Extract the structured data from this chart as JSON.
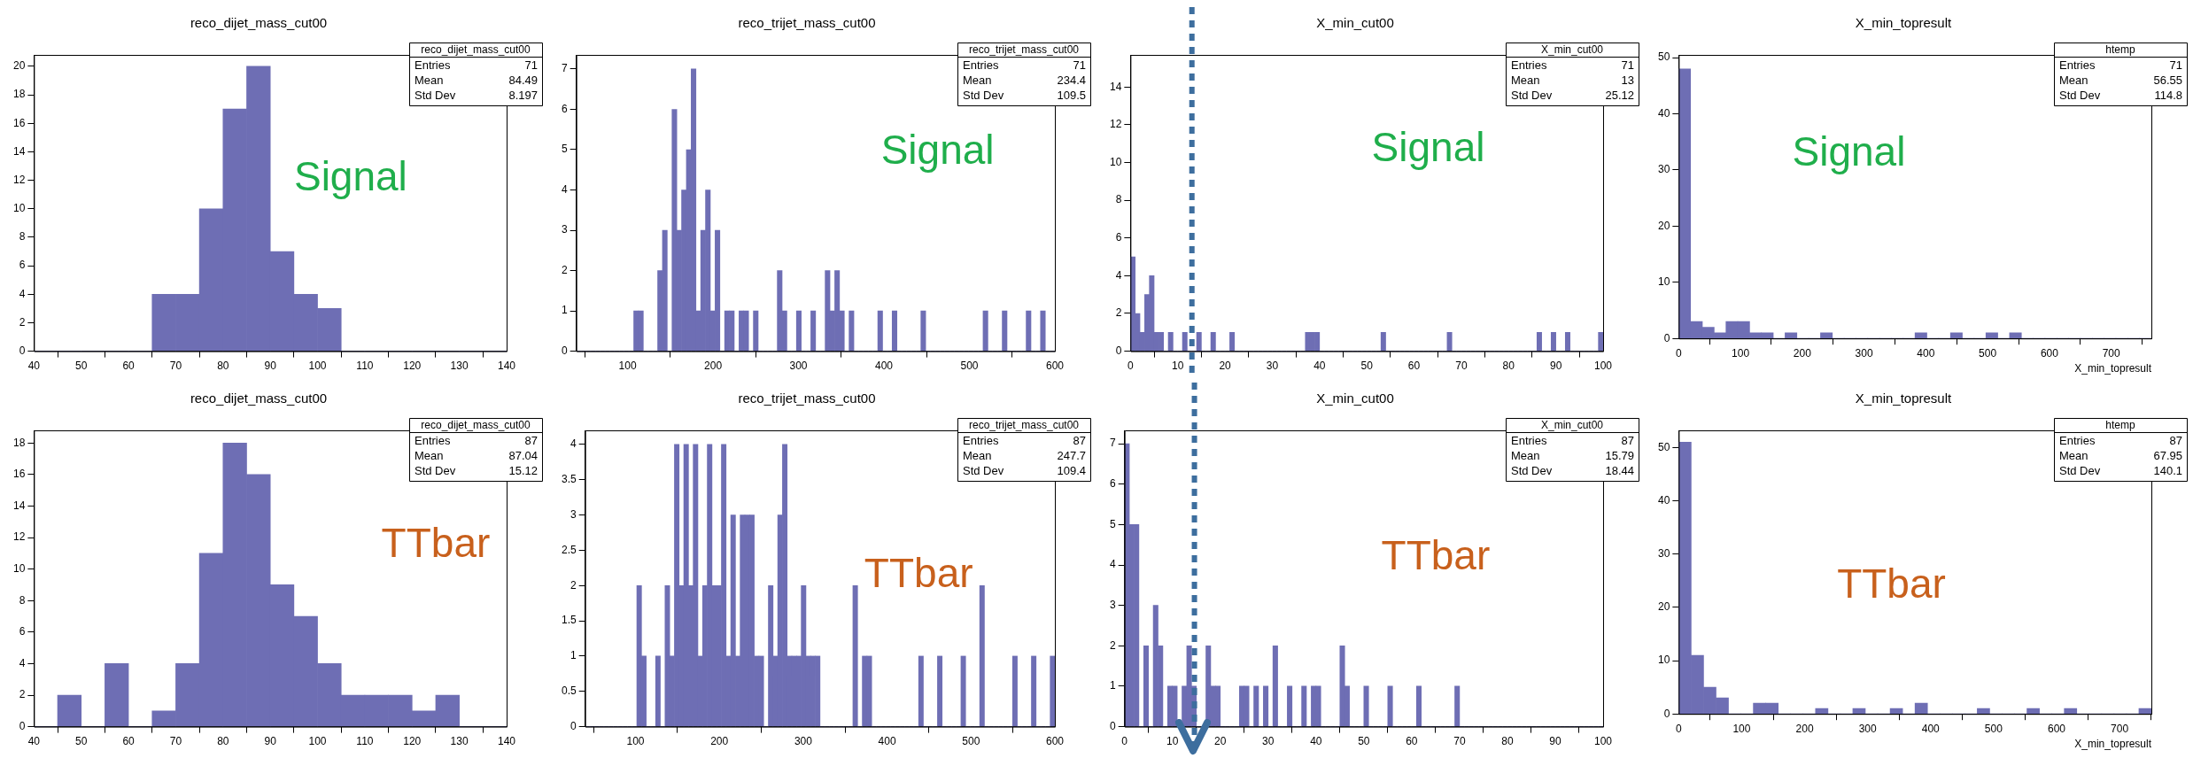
{
  "chart_data": [
    {
      "type": "histogram",
      "title": "reco_dijet_mass_cut00",
      "color": "#6e6eb4",
      "bins": [
        40,
        45,
        50,
        55,
        60,
        65,
        70,
        75,
        80,
        85,
        90,
        95,
        100,
        105,
        110,
        115,
        120,
        125,
        130,
        135,
        140
      ],
      "values": [
        0,
        0,
        0,
        0,
        0,
        4,
        4,
        10,
        17,
        20,
        7,
        4,
        3,
        0,
        0,
        0,
        0,
        0,
        0,
        0
      ],
      "xlim": [
        40,
        140
      ],
      "xticks": [
        40,
        50,
        60,
        70,
        80,
        90,
        100,
        110,
        120,
        130,
        140
      ],
      "ylim": [
        0,
        20.8
      ],
      "yticks": [
        0,
        2,
        4,
        6,
        8,
        10,
        12,
        14,
        16,
        18,
        20
      ],
      "annotations": [
        "reco_dijet_mass_cut00",
        "Entries",
        "71",
        "Mean",
        "84.49",
        "Std Dev",
        "8.197",
        "Signal"
      ]
    },
    {
      "type": "histogram",
      "title": "reco_trijet_mass_cut00",
      "color": "#6e6eb4",
      "bins": [
        40,
        45.6,
        51.2,
        56.8,
        62.4,
        68,
        73.6,
        79.2,
        84.8,
        90.4,
        96,
        101.6,
        107.2,
        112.8,
        118.4,
        124,
        129.6,
        135.2,
        140.8,
        146.4,
        152,
        157.6,
        163.2,
        168.8,
        174.4,
        180,
        185.6,
        191.2,
        196.8,
        202.4,
        208,
        213.6,
        219.2,
        224.8,
        230.4,
        236,
        241.6,
        247.2,
        252.8,
        258.4,
        264,
        269.6,
        275.2,
        280.8,
        286.4,
        292,
        297.6,
        303.2,
        308.8,
        314.4,
        320,
        325.6,
        331.2,
        336.8,
        342.4,
        348,
        353.6,
        359.2,
        364.8,
        370.4,
        376,
        381.6,
        387.2,
        392.8,
        398.4,
        404,
        409.6,
        415.2,
        420.8,
        426.4,
        432,
        437.6,
        443.2,
        448.8,
        454.4,
        460,
        465.6,
        471.2,
        476.8,
        482.4,
        488,
        493.6,
        499.2,
        504.8,
        510.4,
        516,
        521.6,
        527.2,
        532.8,
        538.4,
        544,
        549.6,
        555.2,
        560.8,
        566.4,
        572,
        577.6,
        583.2,
        588.8,
        594.4,
        600
      ],
      "values": [
        0,
        0,
        0,
        0,
        0,
        0,
        0,
        0,
        0,
        0,
        0,
        0,
        1,
        1,
        0,
        0,
        0,
        2,
        3,
        0,
        6,
        3,
        4,
        5,
        7,
        1,
        3,
        4,
        1,
        3,
        0,
        1,
        1,
        0,
        1,
        1,
        0,
        1,
        0,
        0,
        0,
        0,
        2,
        1,
        0,
        0,
        1,
        0,
        0,
        1,
        0,
        0,
        2,
        1,
        2,
        1,
        0,
        1,
        0,
        0,
        0,
        0,
        0,
        1,
        0,
        0,
        1,
        0,
        0,
        0,
        0,
        0,
        1,
        0,
        0,
        0,
        0,
        0,
        0,
        0,
        0,
        0,
        0,
        0,
        0,
        1,
        0,
        0,
        0,
        1,
        0,
        0,
        0,
        0,
        1,
        0,
        0,
        1,
        0,
        0
      ],
      "xlim": [
        40,
        600
      ],
      "xticks": [
        100,
        200,
        300,
        400,
        500,
        600
      ],
      "ylim": [
        0,
        7.35
      ],
      "yticks": [
        0,
        1,
        2,
        3,
        4,
        5,
        6,
        7
      ],
      "annotations": [
        "reco_trijet_mass_cut00",
        "Entries",
        "71",
        "Mean",
        "234.4",
        "Std Dev",
        "109.5",
        "Signal"
      ]
    },
    {
      "type": "histogram",
      "title": "X_min_cut00",
      "color": "#6e6eb4",
      "bins": [
        0,
        1,
        2,
        3,
        4,
        5,
        6,
        7,
        8,
        9,
        10,
        11,
        12,
        13,
        14,
        15,
        16,
        17,
        18,
        19,
        20,
        21,
        22,
        23,
        24,
        25,
        26,
        27,
        28,
        29,
        30,
        31,
        32,
        33,
        34,
        35,
        36,
        37,
        38,
        39,
        40,
        41,
        42,
        43,
        44,
        45,
        46,
        47,
        48,
        49,
        50,
        51,
        52,
        53,
        54,
        55,
        56,
        57,
        58,
        59,
        60,
        61,
        62,
        63,
        64,
        65,
        66,
        67,
        68,
        69,
        70,
        71,
        72,
        73,
        74,
        75,
        76,
        77,
        78,
        79,
        80,
        81,
        82,
        83,
        84,
        85,
        86,
        87,
        88,
        89,
        90,
        91,
        92,
        93,
        94,
        95,
        96,
        97,
        98,
        99,
        100
      ],
      "values": [
        5,
        2,
        1,
        3,
        4,
        1,
        1,
        0,
        1,
        0,
        0,
        1,
        0,
        0,
        1,
        0,
        0,
        1,
        0,
        0,
        0,
        1,
        0,
        0,
        0,
        0,
        0,
        0,
        0,
        0,
        0,
        0,
        0,
        0,
        0,
        0,
        0,
        1,
        1,
        1,
        0,
        0,
        0,
        0,
        0,
        0,
        0,
        0,
        0,
        0,
        0,
        0,
        0,
        1,
        0,
        0,
        0,
        0,
        0,
        0,
        0,
        0,
        0,
        0,
        0,
        0,
        0,
        1,
        0,
        0,
        0,
        0,
        0,
        0,
        0,
        0,
        0,
        0,
        0,
        0,
        0,
        0,
        0,
        0,
        0,
        0,
        1,
        0,
        0,
        1,
        0,
        0,
        1,
        0,
        0,
        0,
        0,
        0,
        0,
        1
      ],
      "xlim": [
        0,
        100
      ],
      "xticks": [
        0,
        10,
        20,
        30,
        40,
        50,
        60,
        70,
        80,
        90,
        100
      ],
      "ylim": [
        0,
        15.7
      ],
      "yticks": [
        0,
        2,
        4,
        6,
        8,
        10,
        12,
        14
      ],
      "ref_lines": [
        {
          "axis": "x",
          "value": 13,
          "color": "#3d6e9e",
          "line_style": "dashed"
        }
      ],
      "annotations": [
        "X_min_cut00",
        "Entries",
        "71",
        "Mean",
        "13",
        "Std Dev",
        "25.12",
        "Signal"
      ]
    },
    {
      "type": "histogram",
      "title": "X_min_topresult",
      "xlabel": "X_min_topresult",
      "color": "#6e6eb4",
      "bins": [
        0,
        19.125,
        38.25,
        57.375,
        76.5,
        95.625,
        114.75,
        133.875,
        153,
        172.125,
        191.25,
        210.375,
        229.5,
        248.625,
        267.75,
        286.875,
        306,
        325.125,
        344.25,
        363.375,
        382.5,
        401.625,
        420.75,
        439.875,
        459,
        478.125,
        497.25,
        516.375,
        535.5,
        554.625,
        573.75,
        592.875,
        612,
        631.125,
        650.25,
        669.375,
        688.5,
        707.625,
        726.75,
        745.875,
        765
      ],
      "values": [
        48,
        3,
        2,
        1,
        3,
        3,
        1,
        1,
        0,
        1,
        0,
        0,
        1,
        0,
        0,
        0,
        0,
        0,
        0,
        0,
        1,
        0,
        0,
        1,
        0,
        0,
        1,
        0,
        1,
        0,
        0,
        0,
        0,
        0,
        0,
        0,
        0,
        0,
        0,
        0
      ],
      "xlim": [
        0,
        765
      ],
      "xticks": [
        0,
        100,
        200,
        300,
        400,
        500,
        600,
        700
      ],
      "ylim": [
        0,
        50.5
      ],
      "yticks": [
        0,
        10,
        20,
        30,
        40,
        50
      ],
      "annotations": [
        "htemp",
        "Entries",
        "71",
        "Mean",
        "56.55",
        "Std Dev",
        "114.8",
        "Signal"
      ]
    },
    {
      "type": "histogram",
      "title": "reco_dijet_mass_cut00",
      "color": "#6e6eb4",
      "bins": [
        40,
        45,
        50,
        55,
        60,
        65,
        70,
        75,
        80,
        85,
        90,
        95,
        100,
        105,
        110,
        115,
        120,
        125,
        130,
        135,
        140
      ],
      "values": [
        0,
        2,
        0,
        4,
        0,
        1,
        4,
        11,
        18,
        16,
        9,
        7,
        4,
        2,
        2,
        2,
        1,
        2,
        0,
        0
      ],
      "xlim": [
        40,
        140
      ],
      "xticks": [
        40,
        50,
        60,
        70,
        80,
        90,
        100,
        110,
        120,
        130,
        140
      ],
      "ylim": [
        0,
        18.8
      ],
      "yticks": [
        0,
        2,
        4,
        6,
        8,
        10,
        12,
        14,
        16,
        18
      ],
      "annotations": [
        "reco_dijet_mass_cut00",
        "Entries",
        "87",
        "Mean",
        "87.04",
        "Std Dev",
        "15.12",
        "TTbar"
      ]
    },
    {
      "type": "histogram",
      "title": "reco_trijet_mass_cut00",
      "color": "#6e6eb4",
      "bins": [
        40,
        45.6,
        51.2,
        56.8,
        62.4,
        68,
        73.6,
        79.2,
        84.8,
        90.4,
        96,
        101.6,
        107.2,
        112.8,
        118.4,
        124,
        129.6,
        135.2,
        140.8,
        146.4,
        152,
        157.6,
        163.2,
        168.8,
        174.4,
        180,
        185.6,
        191.2,
        196.8,
        202.4,
        208,
        213.6,
        219.2,
        224.8,
        230.4,
        236,
        241.6,
        247.2,
        252.8,
        258.4,
        264,
        269.6,
        275.2,
        280.8,
        286.4,
        292,
        297.6,
        303.2,
        308.8,
        314.4,
        320,
        325.6,
        331.2,
        336.8,
        342.4,
        348,
        353.6,
        359.2,
        364.8,
        370.4,
        376,
        381.6,
        387.2,
        392.8,
        398.4,
        404,
        409.6,
        415.2,
        420.8,
        426.4,
        432,
        437.6,
        443.2,
        448.8,
        454.4,
        460,
        465.6,
        471.2,
        476.8,
        482.4,
        488,
        493.6,
        499.2,
        504.8,
        510.4,
        516,
        521.6,
        527.2,
        532.8,
        538.4,
        544,
        549.6,
        555.2,
        560.8,
        566.4,
        572,
        577.6,
        583.2,
        588.8,
        594.4,
        600
      ],
      "values": [
        0,
        0,
        0,
        0,
        0,
        0,
        0,
        0,
        0,
        0,
        0,
        2,
        1,
        0,
        0,
        1,
        0,
        2,
        1,
        4,
        2,
        4,
        2,
        4,
        1,
        2,
        4,
        2,
        2,
        4,
        1,
        3,
        1,
        3,
        3,
        3,
        1,
        1,
        0,
        2,
        1,
        3,
        4,
        1,
        1,
        1,
        2,
        1,
        1,
        1,
        0,
        0,
        0,
        0,
        0,
        0,
        0,
        2,
        0,
        1,
        1,
        0,
        0,
        0,
        0,
        0,
        0,
        0,
        0,
        0,
        0,
        1,
        0,
        0,
        0,
        1,
        0,
        0,
        0,
        0,
        1,
        0,
        0,
        0,
        2,
        0,
        0,
        0,
        0,
        0,
        0,
        1,
        0,
        0,
        0,
        1,
        0,
        0,
        0,
        1
      ],
      "xlim": [
        40,
        600
      ],
      "xticks": [
        100,
        200,
        300,
        400,
        500,
        600
      ],
      "ylim": [
        0,
        4.2
      ],
      "yticks": [
        0,
        0.5,
        1,
        1.5,
        2,
        2.5,
        3,
        3.5,
        4
      ],
      "annotations": [
        "reco_trijet_mass_cut00",
        "Entries",
        "87",
        "Mean",
        "247.7",
        "Std Dev",
        "109.4",
        "TTbar"
      ]
    },
    {
      "type": "histogram",
      "title": "X_min_cut00",
      "color": "#6e6eb4",
      "bins": [
        0,
        1,
        2,
        3,
        4,
        5,
        6,
        7,
        8,
        9,
        10,
        11,
        12,
        13,
        14,
        15,
        16,
        17,
        18,
        19,
        20,
        21,
        22,
        23,
        24,
        25,
        26,
        27,
        28,
        29,
        30,
        31,
        32,
        33,
        34,
        35,
        36,
        37,
        38,
        39,
        40,
        41,
        42,
        43,
        44,
        45,
        46,
        47,
        48,
        49,
        50,
        51,
        52,
        53,
        54,
        55,
        56,
        57,
        58,
        59,
        60,
        61,
        62,
        63,
        64,
        65,
        66,
        67,
        68,
        69,
        70,
        71,
        72,
        73,
        74,
        75,
        76,
        77,
        78,
        79,
        80,
        81,
        82,
        83,
        84,
        85,
        86,
        87,
        88,
        89,
        90,
        91,
        92,
        93,
        94,
        95,
        96,
        97,
        98,
        99,
        100
      ],
      "values": [
        7,
        5,
        5,
        0,
        2,
        0,
        3,
        2,
        0,
        1,
        1,
        0,
        1,
        2,
        1,
        0,
        0,
        2,
        1,
        1,
        0,
        0,
        0,
        0,
        1,
        1,
        0,
        1,
        0,
        1,
        0,
        2,
        0,
        0,
        1,
        0,
        0,
        1,
        0,
        1,
        1,
        0,
        0,
        0,
        0,
        2,
        1,
        0,
        0,
        0,
        1,
        0,
        0,
        0,
        0,
        1,
        0,
        0,
        0,
        0,
        0,
        1,
        0,
        0,
        0,
        0,
        0,
        0,
        0,
        1,
        0,
        0,
        0,
        0,
        0,
        0,
        0,
        0,
        0,
        0,
        0,
        0,
        0,
        0,
        0,
        0,
        0,
        0,
        0,
        0,
        0,
        0,
        0,
        0,
        0,
        0,
        0,
        0,
        0,
        0
      ],
      "xlim": [
        0,
        100
      ],
      "xticks": [
        0,
        10,
        20,
        30,
        40,
        50,
        60,
        70,
        80,
        90,
        100
      ],
      "ylim": [
        0,
        7.33
      ],
      "yticks": [
        0,
        1,
        2,
        3,
        4,
        5,
        6,
        7
      ],
      "ref_lines": [
        {
          "axis": "x",
          "value": 14.6,
          "color": "#3d6e9e",
          "line_style": "dashed"
        }
      ],
      "annotations": [
        "X_min_cut00",
        "Entries",
        "87",
        "Mean",
        "15.79",
        "Std Dev",
        "18.44",
        "TTbar"
      ]
    },
    {
      "type": "histogram",
      "title": "X_min_topresult",
      "xlabel": "X_min_topresult",
      "color": "#6e6eb4",
      "bins": [
        0,
        19.75,
        39.5,
        59.25,
        79,
        98.75,
        118.5,
        138.25,
        158,
        177.75,
        197.5,
        217.25,
        237,
        256.75,
        276.5,
        296.25,
        316,
        335.75,
        355.5,
        375.25,
        395,
        414.75,
        434.5,
        454.25,
        474,
        493.75,
        513.5,
        533.25,
        553,
        572.75,
        592.5,
        612.25,
        632,
        651.75,
        671.5,
        691.25,
        711,
        730.75,
        750.5
      ],
      "values": [
        51,
        11,
        5,
        3,
        0,
        0,
        2,
        2,
        0,
        0,
        0,
        1,
        0,
        0,
        1,
        0,
        0,
        1,
        0,
        2,
        0,
        0,
        0,
        0,
        1,
        0,
        0,
        0,
        1,
        0,
        0,
        1,
        0,
        0,
        0,
        0,
        0,
        1
      ],
      "xlim": [
        0,
        750.5
      ],
      "xticks": [
        0,
        100,
        200,
        300,
        400,
        500,
        600,
        700
      ],
      "ylim": [
        0,
        53.2
      ],
      "yticks": [
        0,
        10,
        20,
        30,
        40,
        50
      ],
      "annotations": [
        "htemp",
        "Entries",
        "87",
        "Mean",
        "67.95",
        "Std Dev",
        "140.1",
        "TTbar"
      ]
    }
  ]
}
